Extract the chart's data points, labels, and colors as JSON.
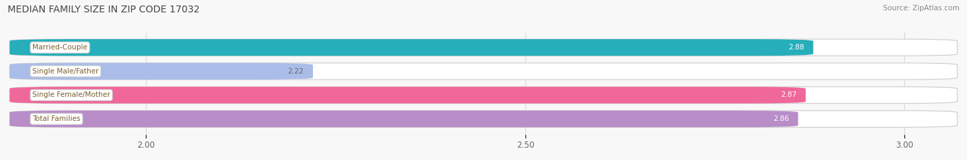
{
  "title": "MEDIAN FAMILY SIZE IN ZIP CODE 17032",
  "source": "Source: ZipAtlas.com",
  "categories": [
    "Married-Couple",
    "Single Male/Father",
    "Single Female/Mother",
    "Total Families"
  ],
  "values": [
    2.88,
    2.22,
    2.87,
    2.86
  ],
  "bar_colors": [
    "#27AEBB",
    "#AABDE8",
    "#F0679A",
    "#B88DC8"
  ],
  "label_text_color": "#7a6030",
  "bar_bg_color": "#f0f0f0",
  "xlim_min": 1.82,
  "xlim_max": 3.07,
  "xticks": [
    2.0,
    2.5,
    3.0
  ],
  "label_colors_value": [
    "#ffffff",
    "#666666",
    "#ffffff",
    "#ffffff"
  ],
  "figsize": [
    14.06,
    2.33
  ],
  "dpi": 100,
  "bar_height": 0.7,
  "bar_gap": 1.0,
  "background_color": "#f8f8f8",
  "grid_color": "#d8d8d8",
  "bar_bg_edge_color": "#cccccc"
}
